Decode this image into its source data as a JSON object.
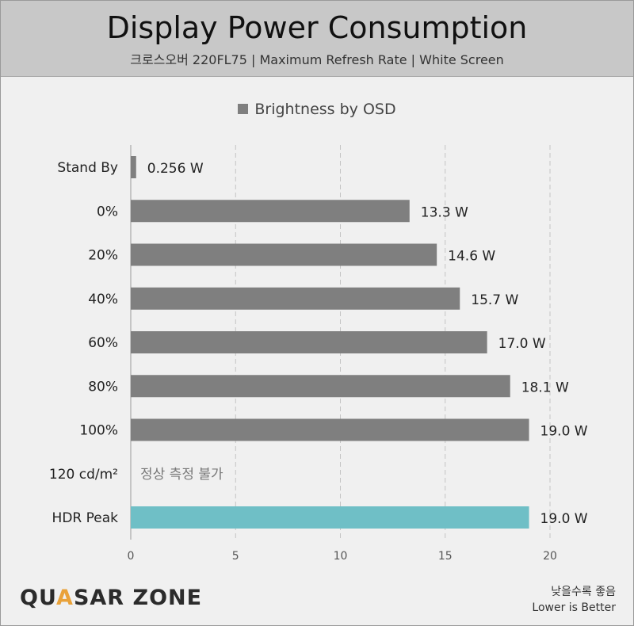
{
  "header": {
    "title": "Display Power Consumption",
    "subtitle": "크로스오버 220FL75  |  Maximum Refresh Rate  |  White Screen"
  },
  "legend": {
    "label": "Brightness by OSD"
  },
  "chart_data": {
    "type": "bar",
    "orientation": "horizontal",
    "title": "Display Power Consumption",
    "subtitle": "크로스오버 220FL75  |  Maximum Refresh Rate  |  White Screen",
    "categories": [
      "Stand By",
      "0%",
      "20%",
      "40%",
      "60%",
      "80%",
      "100%",
      "120 cd/m²",
      "HDR Peak"
    ],
    "series": [
      {
        "name": "Brightness by OSD",
        "values": [
          0.256,
          13.3,
          14.6,
          15.7,
          17.0,
          18.1,
          19.0,
          null,
          19.0
        ],
        "labels": [
          "0.256 W",
          "13.3 W",
          "14.6 W",
          "15.7 W",
          "17.0 W",
          "18.1 W",
          "19.0 W",
          "정상 측정 불가",
          "19.0 W"
        ],
        "highlight": [
          false,
          false,
          false,
          false,
          false,
          false,
          false,
          false,
          true
        ]
      }
    ],
    "xlim": [
      0,
      20
    ],
    "xticks": [
      0,
      5,
      10,
      15,
      20
    ],
    "grid": "vertical-dashed",
    "legend_position": "top-center",
    "colors": {
      "bar": "#7f7f7f",
      "highlight": "#6fbfc6",
      "na_text": "#777777"
    }
  },
  "footer": {
    "logo_prefix": "QU",
    "logo_accent": "A",
    "logo_suffix": "SAR ZONE",
    "note_korean": "낮을수록 좋음",
    "note_english": "Lower is Better"
  }
}
